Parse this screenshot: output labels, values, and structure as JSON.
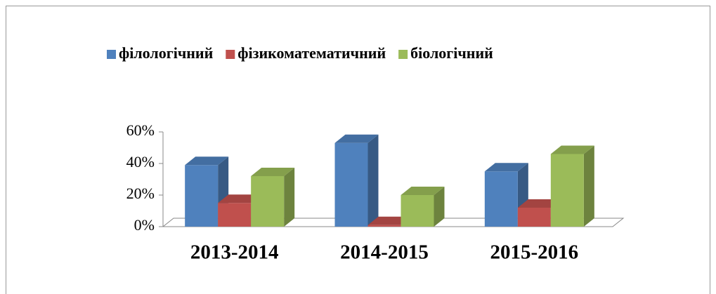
{
  "chart_data": {
    "type": "bar3d",
    "categories": [
      "2013-2014",
      "2014-2015",
      "2015-2016"
    ],
    "series": [
      {
        "name": "філологічний",
        "color": "#4f81bd",
        "values": [
          39,
          53,
          35
        ]
      },
      {
        "name": "фізикоматематичний",
        "color": "#c0504d",
        "values": [
          15,
          1,
          12
        ]
      },
      {
        "name": "біологічний",
        "color": "#9bbb59",
        "values": [
          32,
          20,
          46
        ]
      }
    ],
    "ylim": [
      0,
      60
    ],
    "yticks": [
      {
        "value": 0,
        "label": "0%"
      },
      {
        "value": 20,
        "label": "20%"
      },
      {
        "value": 40,
        "label": "40%"
      },
      {
        "value": 60,
        "label": "60%"
      }
    ],
    "legend": "top"
  }
}
